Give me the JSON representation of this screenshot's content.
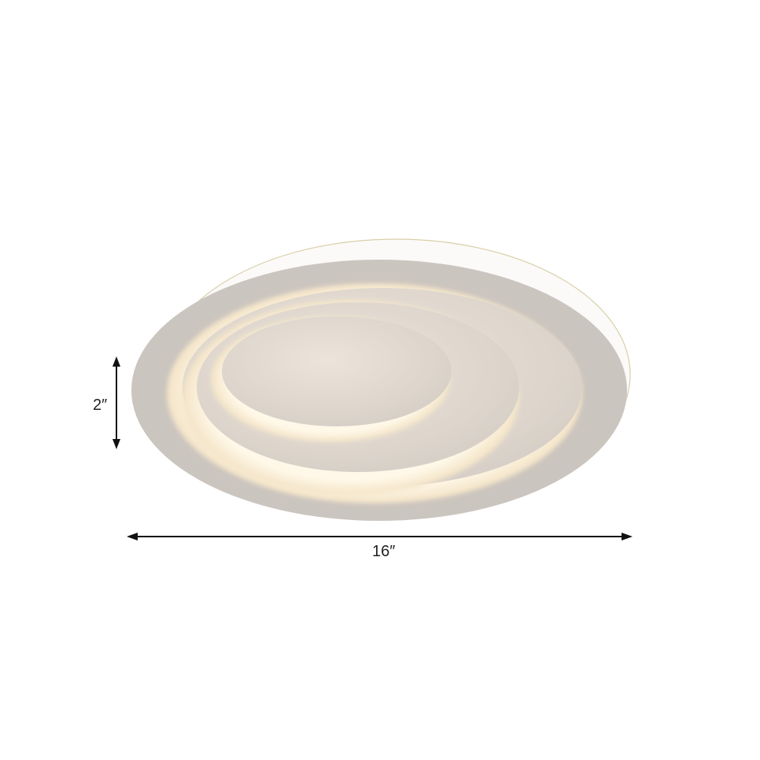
{
  "product": {
    "dimension_height": "2″",
    "dimension_width": "16″"
  },
  "colors": {
    "background": "#ffffff",
    "frame": "#c8c2bc",
    "glow": "#fff4dd",
    "arrow": "#111111"
  }
}
